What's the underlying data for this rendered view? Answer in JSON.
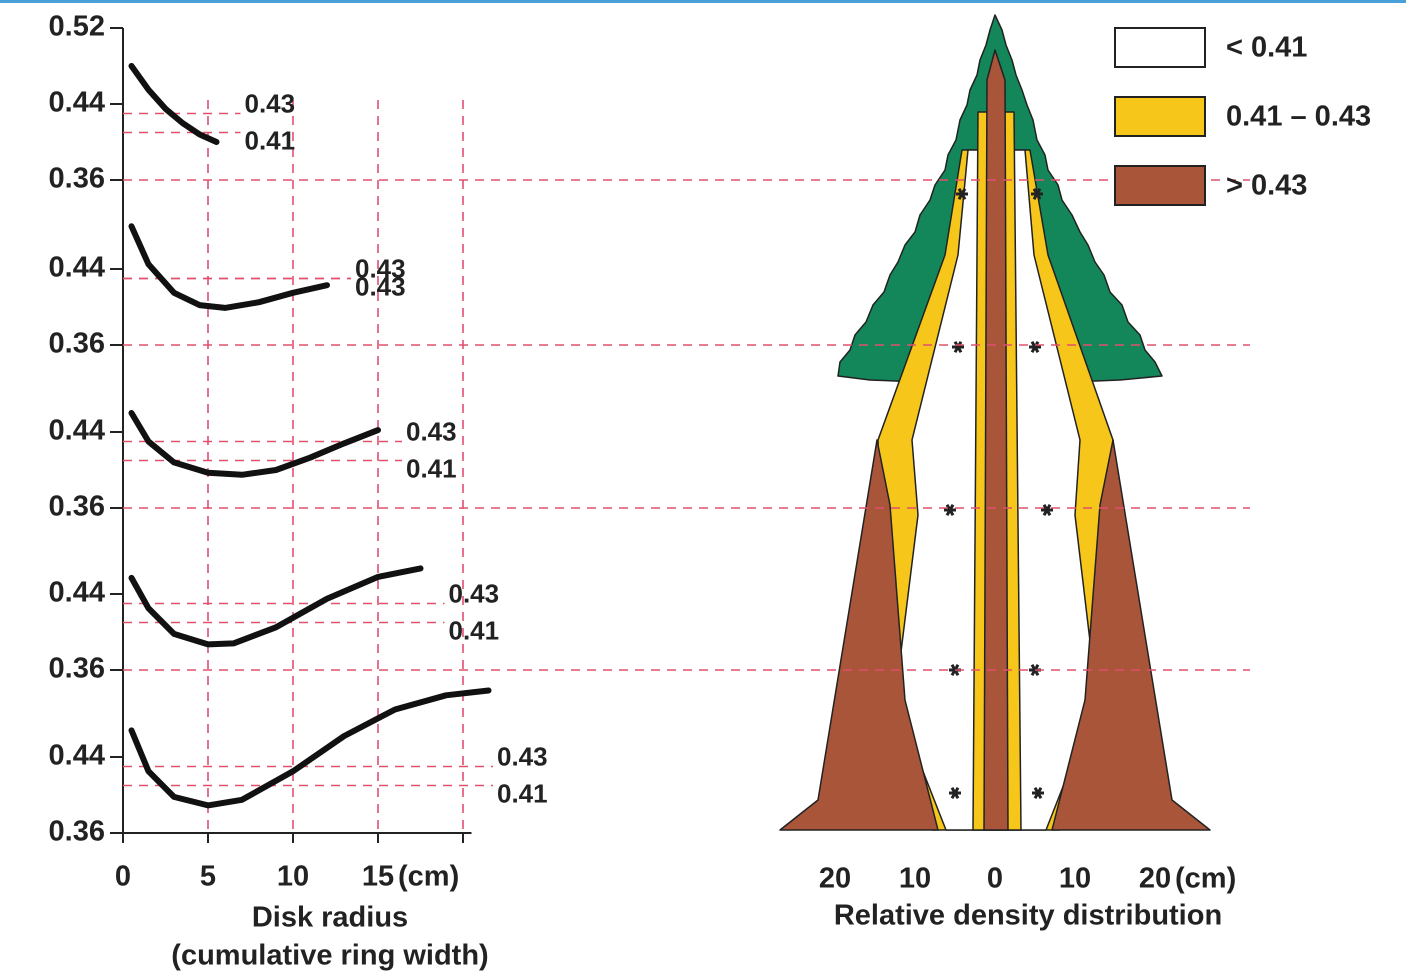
{
  "chart_data": [
    {
      "type": "line",
      "color": "#111111",
      "grid": true,
      "xlim": [
        0,
        20.5
      ],
      "xticks": [
        0,
        5,
        10,
        15
      ],
      "xgrid": [
        5,
        10,
        15,
        20
      ],
      "x_unit": "(cm)",
      "x_label": "Disk radius",
      "x_label_2": "(cumulative ring width)",
      "panels": [
        {
          "ylim": [
            0.36,
            0.52
          ],
          "yticks": [
            0.52,
            0.44,
            0.36
          ],
          "annotations": [
            0.43,
            0.41
          ],
          "x": [
            0.5,
            1.5,
            2.5,
            3.5,
            4.5,
            5.5
          ],
          "values": [
            0.48,
            0.455,
            0.435,
            0.42,
            0.408,
            0.4
          ]
        },
        {
          "ylim": [
            0.36,
            0.52
          ],
          "yticks": [
            0.44,
            0.36
          ],
          "annotations": [
            0.43,
            0.43
          ],
          "x": [
            0.5,
            1.5,
            3,
            4.5,
            6,
            8,
            10,
            12
          ],
          "values": [
            0.485,
            0.445,
            0.415,
            0.402,
            0.399,
            0.405,
            0.415,
            0.423
          ]
        },
        {
          "ylim": [
            0.36,
            0.52
          ],
          "yticks": [
            0.44,
            0.36
          ],
          "annotations": [
            0.43,
            0.41
          ],
          "x": [
            0.5,
            1.5,
            3,
            5,
            7,
            9,
            11,
            13,
            15
          ],
          "values": [
            0.46,
            0.43,
            0.408,
            0.397,
            0.395,
            0.4,
            0.413,
            0.428,
            0.442
          ]
        },
        {
          "ylim": [
            0.36,
            0.52
          ],
          "yticks": [
            0.44,
            0.36
          ],
          "annotations": [
            0.43,
            0.41
          ],
          "x": [
            0.5,
            1.5,
            3,
            5,
            6.5,
            9,
            12,
            15,
            17.5
          ],
          "values": [
            0.457,
            0.425,
            0.398,
            0.387,
            0.388,
            0.405,
            0.435,
            0.458,
            0.467
          ]
        },
        {
          "ylim": [
            0.36,
            0.52
          ],
          "yticks": [
            0.44,
            0.36
          ],
          "annotations": [
            0.43,
            0.41
          ],
          "x": [
            0.5,
            1.5,
            3,
            5,
            7,
            10,
            13,
            16,
            19,
            21.5
          ],
          "values": [
            0.468,
            0.425,
            0.398,
            0.389,
            0.395,
            0.425,
            0.462,
            0.49,
            0.505,
            0.51
          ]
        }
      ]
    },
    {
      "type": "area",
      "x_label": "Relative density distribution",
      "x_unit": "(cm)",
      "xlim": [
        -28,
        28
      ],
      "xticks": [
        {
          "value": -20,
          "label": "20"
        },
        {
          "value": -10,
          "label": "10"
        },
        0,
        10,
        {
          "value": 20,
          "label": "20"
        }
      ],
      "legend": "top-right",
      "crown_color": "#13875a",
      "series": [
        {
          "name": "< 0.41",
          "color": "#ffffff"
        },
        {
          "name": "0.41 – 0.43",
          "color": "#f6c71a"
        },
        {
          "name": "> 0.43",
          "color": "#a9553a"
        }
      ]
    }
  ]
}
